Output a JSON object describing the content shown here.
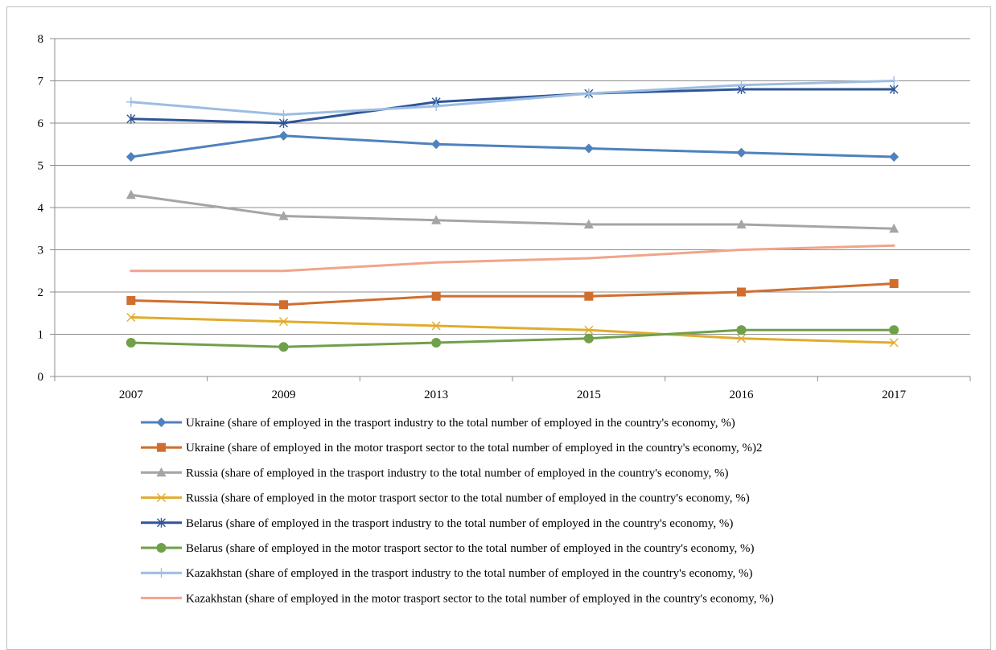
{
  "chart_data": {
    "type": "line",
    "categories": [
      "2007",
      "2009",
      "2013",
      "2015",
      "2016",
      "2017"
    ],
    "ylim": [
      0,
      8
    ],
    "yticks": [
      0,
      1,
      2,
      3,
      4,
      5,
      6,
      7,
      8
    ],
    "grid": "horizontal",
    "legend_position": "bottom",
    "series": [
      {
        "name": "Ukraine (share of employed in the trasport industry to the total number of employed in the country's economy, %)",
        "values": [
          5.2,
          5.7,
          5.5,
          5.4,
          5.3,
          5.2
        ],
        "color": "#4f81bd",
        "marker": "diamond"
      },
      {
        "name": "Ukraine (share of employed in the motor trasport sector to the total number of employed in the country's economy, %)2",
        "values": [
          1.8,
          1.7,
          1.9,
          1.9,
          2.0,
          2.2
        ],
        "color": "#d06e2f",
        "marker": "square"
      },
      {
        "name": "Russia (share of employed in the trasport industry to the total number of employed in the country's economy, %)",
        "values": [
          4.3,
          3.8,
          3.7,
          3.6,
          3.6,
          3.5
        ],
        "color": "#a5a5a5",
        "marker": "triangle"
      },
      {
        "name": "Russia (share of employed in the motor trasport sector to the total number of employed in the country's economy, %)",
        "values": [
          1.4,
          1.3,
          1.2,
          1.1,
          0.9,
          0.8
        ],
        "color": "#e0ac2e",
        "marker": "x"
      },
      {
        "name": "Belarus (share of employed in the trasport industry to the total number of employed in the country's economy, %)",
        "values": [
          6.1,
          6.0,
          6.5,
          6.7,
          6.8,
          6.8
        ],
        "color": "#2e5597",
        "marker": "star"
      },
      {
        "name": "Belarus (share of employed in the motor trasport sector to the total number of employed in the country's economy, %)",
        "values": [
          0.8,
          0.7,
          0.8,
          0.9,
          1.1,
          1.1
        ],
        "color": "#70a04a",
        "marker": "circle"
      },
      {
        "name": "Kazakhstan (share of employed in the trasport industry to the total number of employed in the country's economy, %)",
        "values": [
          6.5,
          6.2,
          6.4,
          6.7,
          6.9,
          7.0
        ],
        "color": "#9dbde2",
        "marker": "plus"
      },
      {
        "name": "Kazakhstan (share of employed in the motor trasport sector to the total number of employed in the country's economy, %)",
        "values": [
          2.5,
          2.5,
          2.7,
          2.8,
          3.0,
          3.1
        ],
        "color": "#f0a58a",
        "marker": "none"
      }
    ]
  }
}
